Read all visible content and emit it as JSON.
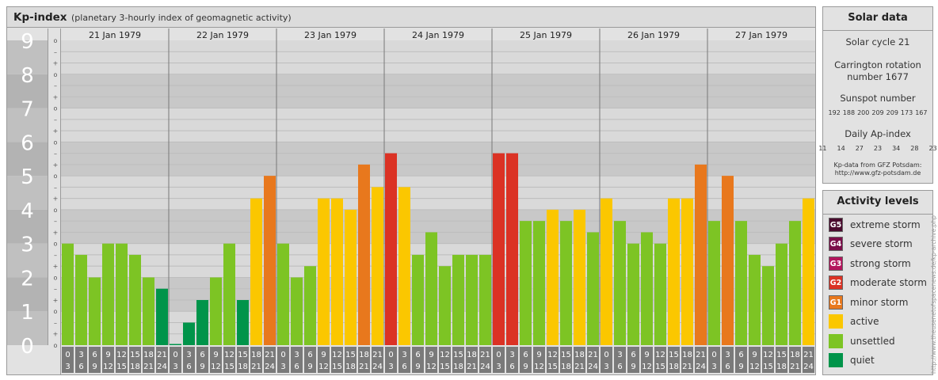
{
  "header": {
    "title": "Kp-index",
    "subtitle": "(planetary 3-hourly index of geomagnetic activity)"
  },
  "chart_data": {
    "type": "bar",
    "title": "Kp-index",
    "subtitle": "(planetary 3-hourly index of geomagnetic activity)",
    "ylim": [
      0,
      9
    ],
    "y_ticks": [
      "0",
      "1",
      "2",
      "3",
      "4",
      "5",
      "6",
      "7",
      "8",
      "9"
    ],
    "minor_ticks": [
      "o",
      "+",
      "–"
    ],
    "days": [
      "21 Jan 1979",
      "22 Jan 1979",
      "23 Jan 1979",
      "24 Jan 1979",
      "25 Jan 1979",
      "26 Jan 1979",
      "27 Jan 1979"
    ],
    "interval_start": [
      "0",
      "3",
      "6",
      "9",
      "12",
      "15",
      "18",
      "21"
    ],
    "interval_end": [
      "3",
      "6",
      "9",
      "12",
      "15",
      "18",
      "21",
      "24"
    ],
    "values": [
      [
        3.0,
        2.667,
        2.0,
        3.0,
        3.0,
        2.667,
        2.0,
        1.667
      ],
      [
        0.0,
        0.667,
        1.333,
        2.0,
        3.0,
        1.333,
        4.333,
        5.0
      ],
      [
        3.0,
        2.0,
        2.333,
        4.333,
        4.333,
        4.0,
        5.333,
        4.667
      ],
      [
        5.667,
        4.667,
        2.667,
        3.333,
        2.333,
        2.667,
        2.667,
        2.667
      ],
      [
        5.667,
        5.667,
        3.667,
        3.667,
        4.0,
        3.667,
        4.0,
        3.333
      ],
      [
        4.333,
        3.667,
        3.0,
        3.333,
        3.0,
        4.333,
        4.333,
        5.333
      ],
      [
        3.667,
        5.0,
        3.667,
        2.667,
        2.333,
        3.0,
        3.667,
        4.333
      ]
    ]
  },
  "activity_colors": {
    "quiet": "#00944a",
    "unsettled": "#7dc424",
    "active": "#fbc700",
    "G1": "#e8781d",
    "G2": "#db3224",
    "G3": "#b3155c",
    "G4": "#7b0f4a",
    "G5": "#4a0b2e"
  },
  "solar": {
    "title": "Solar data",
    "cycle": "Solar cycle 21",
    "carrington_line1": "Carrington rotation",
    "carrington_line2": "number 1677",
    "sunspot_label": "Sunspot number",
    "sunspot_values": [
      "192",
      "188",
      "200",
      "209",
      "209",
      "173",
      "167"
    ],
    "ap_label": "Daily Ap-index",
    "ap_values": [
      "11",
      "14",
      "27",
      "23",
      "34",
      "28",
      "23"
    ],
    "source_line1": "Kp-data from GFZ Potsdam:",
    "source_line2": "http://www.gfz-potsdam.de"
  },
  "activity": {
    "title": "Activity levels",
    "items": [
      {
        "code": "G5",
        "label": "extreme storm",
        "color": "#4a0b2e"
      },
      {
        "code": "G4",
        "label": "severe storm",
        "color": "#7b0f4a"
      },
      {
        "code": "G3",
        "label": "strong storm",
        "color": "#b3155c"
      },
      {
        "code": "G2",
        "label": "moderate storm",
        "color": "#db3224"
      },
      {
        "code": "G1",
        "label": "minor storm",
        "color": "#e8781d"
      },
      {
        "code": "",
        "label": "active",
        "color": "#fbc700"
      },
      {
        "code": "",
        "label": "unsettled",
        "color": "#7dc424"
      },
      {
        "code": "",
        "label": "quiet",
        "color": "#00944a"
      }
    ]
  },
  "credit": "http://www.theusenetofspacenews.de/kp-archive.php"
}
